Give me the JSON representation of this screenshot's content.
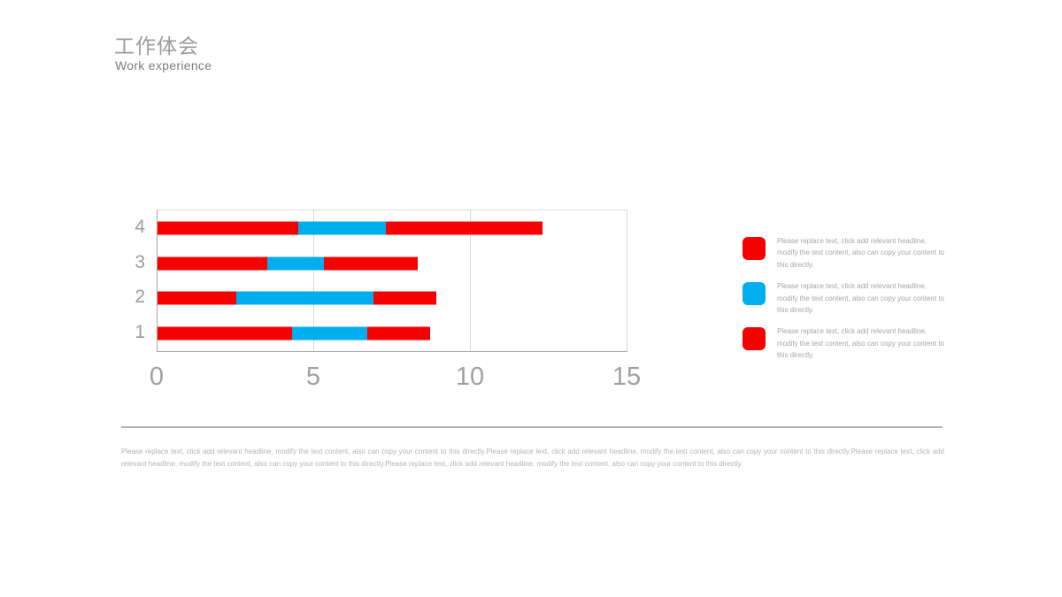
{
  "slide": {
    "header": {
      "title": "工作体会",
      "subtitle": "Work experience"
    },
    "colors": {
      "accent_red": "#f70000",
      "accent_blue": "#00aeef",
      "axis_gray": "#a6a6a6",
      "label_gray": "#9c9c9c"
    }
  },
  "chart_data": {
    "type": "bar",
    "orientation": "horizontal",
    "stacked": true,
    "title": "",
    "xlabel": "",
    "ylabel": "",
    "categories": [
      "1",
      "2",
      "3",
      "4"
    ],
    "series": [
      {
        "name": "series-1-red",
        "color": "#f70000",
        "values": [
          4.3,
          2.5,
          3.5,
          4.5
        ]
      },
      {
        "name": "series-2-blue",
        "color": "#00aeef",
        "values": [
          2.4,
          4.4,
          1.8,
          2.8
        ]
      },
      {
        "name": "series-3-red",
        "color": "#f70000",
        "values": [
          2,
          2,
          3,
          5
        ]
      }
    ],
    "xlim": [
      0,
      15
    ],
    "xticks": [
      0,
      5,
      10,
      15
    ],
    "grid": true,
    "legend_position": "right"
  },
  "legend": {
    "items": [
      {
        "color": "#f70000",
        "text": "Please replace text, click add relevant headline, modify the text content, also can copy your content to this directly."
      },
      {
        "color": "#00aeef",
        "text": "Please replace text, click add relevant headline, modify the text content, also can copy your content to this directly."
      },
      {
        "color": "#f70000",
        "text": "Please replace text, click add relevant headline, modify the text content, also can copy your content to this directly."
      }
    ]
  },
  "footer": {
    "paragraph": "Please replace text, click add relevant headline, modify the text content, also can copy your content to this directly.Please replace text, click add relevant headline, modify the text content, also can copy your content to this directly.Please replace text, click add relevant headline, modify the text content, also can copy your content to this directly.Please replace text, click add relevant headline, modify the text content, also can copy your content to this directly."
  }
}
